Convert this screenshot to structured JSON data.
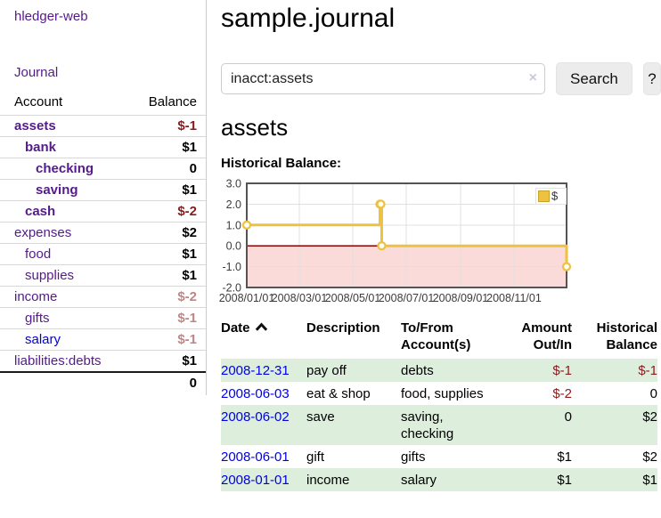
{
  "app_title": "hledger-web",
  "sidebar": {
    "journal_link": "Journal",
    "account_header": "Account",
    "balance_header": "Balance",
    "accounts": [
      {
        "name": "assets",
        "level": 0,
        "bold": true,
        "link_color": "purple",
        "balance": "$-1",
        "balance_style": "neg"
      },
      {
        "name": "bank",
        "level": 1,
        "bold": true,
        "link_color": "purple",
        "balance": "$1",
        "balance_style": "pos"
      },
      {
        "name": "checking",
        "level": 2,
        "bold": true,
        "link_color": "purple",
        "balance": "0",
        "balance_style": "pos"
      },
      {
        "name": "saving",
        "level": 2,
        "bold": true,
        "link_color": "purple",
        "balance": "$1",
        "balance_style": "pos"
      },
      {
        "name": "cash",
        "level": 1,
        "bold": true,
        "link_color": "purple",
        "balance": "$-2",
        "balance_style": "neg"
      },
      {
        "name": "expenses",
        "level": 0,
        "bold": false,
        "link_color": "purple",
        "balance": "$2",
        "balance_style": "pos"
      },
      {
        "name": "food",
        "level": 1,
        "bold": false,
        "link_color": "purple",
        "balance": "$1",
        "balance_style": "pos"
      },
      {
        "name": "supplies",
        "level": 1,
        "bold": false,
        "link_color": "purple",
        "balance": "$1",
        "balance_style": "pos"
      },
      {
        "name": "income",
        "level": 0,
        "bold": false,
        "link_color": "purple",
        "balance": "$-2",
        "balance_style": "dim-neg"
      },
      {
        "name": "gifts",
        "level": 1,
        "bold": false,
        "link_color": "purple",
        "balance": "$-1",
        "balance_style": "dim-neg"
      },
      {
        "name": "salary",
        "level": 1,
        "bold": false,
        "link_color": "blue",
        "balance": "$-1",
        "balance_style": "dim-neg"
      },
      {
        "name": "liabilities:debts",
        "level": 0,
        "bold": false,
        "link_color": "purple",
        "balance": "$1",
        "balance_style": "pos"
      }
    ],
    "total": "0"
  },
  "main": {
    "page_title": "sample.journal",
    "search": {
      "value": "inacct:assets",
      "clear_icon": "×",
      "search_button": "Search",
      "help_button": "?"
    },
    "account_heading": "assets",
    "chart_title": "Historical Balance:"
  },
  "register": {
    "headers": {
      "date": "Date",
      "description": "Description",
      "accounts": "To/From Account(s)",
      "amount": "Amount Out/In",
      "balance": "Historical Balance"
    },
    "rows": [
      {
        "date": "2008-12-31",
        "description": "pay off",
        "accounts": "debts",
        "amount": "$-1",
        "amount_neg": true,
        "balance": "$-1",
        "balance_neg": true
      },
      {
        "date": "2008-06-03",
        "description": "eat & shop",
        "accounts": "food, supplies",
        "amount": "$-2",
        "amount_neg": true,
        "balance": "0",
        "balance_neg": false
      },
      {
        "date": "2008-06-02",
        "description": "save",
        "accounts": "saving, checking",
        "amount": "0",
        "amount_neg": false,
        "balance": "$2",
        "balance_neg": false
      },
      {
        "date": "2008-06-01",
        "description": "gift",
        "accounts": "gifts",
        "amount": "$1",
        "amount_neg": false,
        "balance": "$2",
        "balance_neg": false
      },
      {
        "date": "2008-01-01",
        "description": "income",
        "accounts": "salary",
        "amount": "$1",
        "amount_neg": false,
        "balance": "$1",
        "balance_neg": false
      }
    ]
  },
  "chart_data": {
    "type": "line",
    "step": true,
    "title": "Historical Balance:",
    "x_range": [
      "2008-01-01",
      "2008-12-31"
    ],
    "x_tick_labels": [
      "2008/01/01",
      "2008/03/01",
      "2008/05/01",
      "2008/07/01",
      "2008/09/01",
      "2008/11/01"
    ],
    "y_ticks": [
      3,
      2,
      1,
      0,
      -1,
      -2
    ],
    "ylim": [
      -2,
      3
    ],
    "grid": true,
    "negative_region": true,
    "legend": {
      "label": "$",
      "position": "top-right"
    },
    "series": [
      {
        "name": "$",
        "color": "#edc240",
        "points": [
          [
            "2008-01-01",
            1
          ],
          [
            "2008-06-01",
            2
          ],
          [
            "2008-06-02",
            2
          ],
          [
            "2008-06-03",
            0
          ],
          [
            "2008-12-31",
            -1
          ]
        ]
      }
    ]
  },
  "colors": {
    "link_purple": "#551a8b",
    "link_blue": "#0000e8",
    "negative_red": "#8b1a1a",
    "dim_negative_red": "#c08585",
    "row_stripe_green": "#ddeedd",
    "chart_line_yellow": "#edc240",
    "chart_negative_fill_pink": "#fbdada",
    "chart_zero_line_red": "#8b0000",
    "button_gray": "#ececec"
  }
}
